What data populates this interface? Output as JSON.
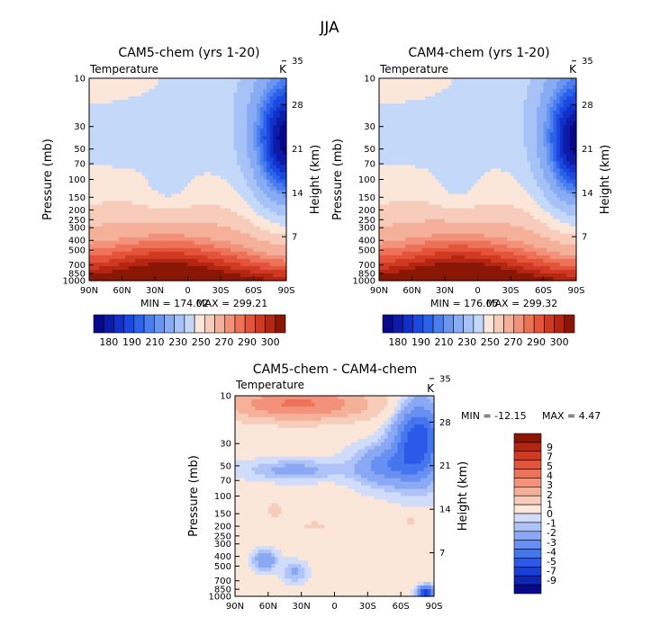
{
  "page": {
    "title": "JJA"
  },
  "colors": {
    "full_scale": [
      "#08088c",
      "#0c1ca8",
      "#1230c8",
      "#1a48e0",
      "#2c62ea",
      "#4a7ef0",
      "#6a96f2",
      "#88acf4",
      "#a6c2f6",
      "#c4d8fa",
      "#fbe6da",
      "#f8ccba",
      "#f5b09a",
      "#f2927a",
      "#ee7258",
      "#e4543a",
      "#d03a22",
      "#b42612",
      "#8a1606"
    ],
    "diff_scale": [
      "#08088c",
      "#1024b4",
      "#1a3ed8",
      "#2c5ae8",
      "#4676ee",
      "#6890f2",
      "#8aa8f4",
      "#aec4f8",
      "#d0dcfa",
      "#fbe6da",
      "#f8ccba",
      "#f5b09a",
      "#f2927a",
      "#ee7258",
      "#e4543a",
      "#d03a22",
      "#b42612",
      "#8a1606"
    ]
  },
  "chart_data": [
    {
      "type": "heatmap",
      "title": "CAM5-chem (yrs 1-20)",
      "field_label": "Temperature",
      "units": "K",
      "ylabel": "Pressure (mb)",
      "y2label": "Height (km)",
      "xlabel": "",
      "x_ticks": [
        "90N",
        "60N",
        "30N",
        "0",
        "30S",
        "60S",
        "90S"
      ],
      "y_ticks": [
        "10",
        "30",
        "50",
        "70",
        "100",
        "150",
        "200",
        "250",
        "300",
        "400",
        "500",
        "700",
        "850",
        "1000"
      ],
      "y2_ticks": [
        "35",
        "28",
        "21",
        "14",
        "7"
      ],
      "min_label": "MIN = 174.02",
      "max_label": "MAX = 299.21",
      "colorbar_labels": [
        "180",
        "190",
        "210",
        "230",
        "250",
        "270",
        "290",
        "300"
      ],
      "z_min": 174.02,
      "z_max": 299.21
    },
    {
      "type": "heatmap",
      "title": "CAM4-chem (yrs 1-20)",
      "field_label": "Temperature",
      "units": "K",
      "ylabel": "Pressure (mb)",
      "y2label": "Height (km)",
      "xlabel": "",
      "x_ticks": [
        "90N",
        "60N",
        "30N",
        "0",
        "30S",
        "60S",
        "90S"
      ],
      "y_ticks": [
        "10",
        "30",
        "50",
        "70",
        "100",
        "150",
        "200",
        "250",
        "300",
        "400",
        "500",
        "700",
        "850",
        "1000"
      ],
      "y2_ticks": [
        "35",
        "28",
        "21",
        "14",
        "7"
      ],
      "min_label": "MIN = 176.05",
      "max_label": "MAX = 299.32",
      "colorbar_labels": [
        "180",
        "190",
        "210",
        "230",
        "250",
        "270",
        "290",
        "300"
      ],
      "z_min": 176.05,
      "z_max": 299.32
    },
    {
      "type": "heatmap",
      "title": "CAM5-chem - CAM4-chem",
      "field_label": "Temperature",
      "units": "K",
      "ylabel": "Pressure (mb)",
      "y2label": "Height (km)",
      "xlabel": "",
      "x_ticks": [
        "90N",
        "60N",
        "30N",
        "0",
        "30S",
        "60S",
        "90S"
      ],
      "y_ticks": [
        "10",
        "30",
        "50",
        "70",
        "100",
        "150",
        "200",
        "250",
        "300",
        "400",
        "500",
        "700",
        "850",
        "1000"
      ],
      "y2_ticks": [
        "35",
        "28",
        "21",
        "14",
        "7"
      ],
      "min_label": "MIN = -12.15",
      "max_label": "MAX =    4.47",
      "colorbar_labels": [
        "9",
        "7",
        "5",
        "4",
        "3",
        "2",
        "1",
        "0",
        "-1",
        "-2",
        "-3",
        "-4",
        "-5",
        "-7",
        "-9"
      ],
      "z_min": -12.15,
      "z_max": 4.47
    }
  ]
}
